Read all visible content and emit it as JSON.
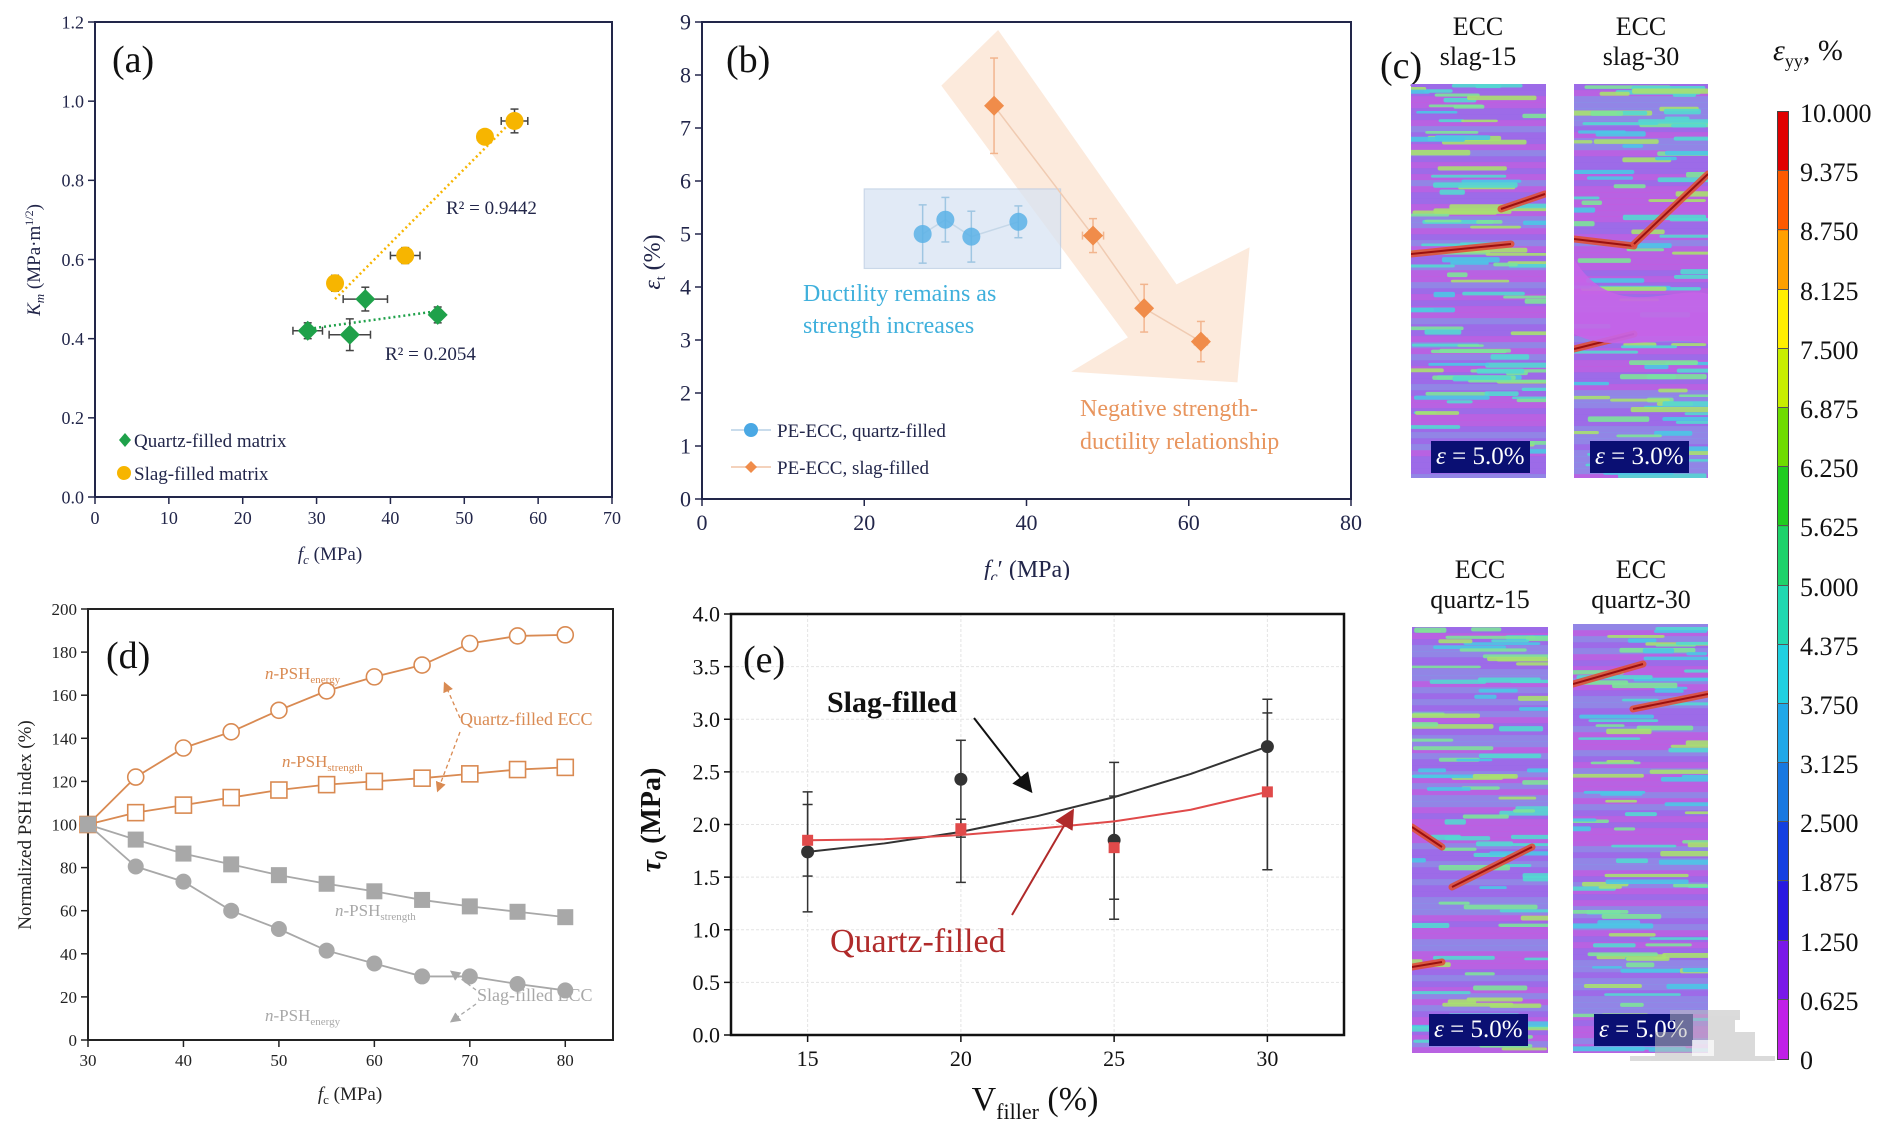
{
  "figure": {
    "panel_labels": {
      "a": "(a)",
      "b": "(b)",
      "c": "(c)",
      "d": "(d)",
      "e": "(e)"
    },
    "colors": {
      "quartz_a": "#1fa14a",
      "slag_a": "#f7b500",
      "quartz_b": "#5ab1e6",
      "slag_b": "#f08c4a",
      "quartz_d": "#d98a52",
      "slag_d": "#9a9a9a",
      "slag_e": "#333333",
      "quartz_e": "#e04a4a",
      "axis_dark": "#22264a"
    }
  },
  "chart_data": [
    {
      "id": "a",
      "type": "scatter",
      "title": "",
      "xlabel": "f_c (MPa)",
      "xlabel_main": "f",
      "xlabel_sub": "c",
      "xlabel_unit": " (MPa)",
      "ylabel": "K_m (MPa·m^1/2)",
      "ylabel_main": "K",
      "ylabel_sub": "m",
      "ylabel_unit": " (MPa·m",
      "ylabel_sup": "1/2",
      "ylabel_close": ")",
      "xlim": [
        0,
        70
      ],
      "ylim": [
        0,
        1.2
      ],
      "xticks": [
        "0",
        "10",
        "20",
        "30",
        "40",
        "50",
        "60",
        "70"
      ],
      "yticks": [
        "0.0",
        "0.2",
        "0.4",
        "0.6",
        "0.8",
        "1.0",
        "1.2"
      ],
      "grid": false,
      "legend_position": "bottom-left",
      "series": [
        {
          "name": "Quartz-filled matrix",
          "marker": "diamond",
          "points": [
            {
              "x": 28.8,
              "y": 0.42,
              "xerr": 2.0,
              "yerr": 0.02
            },
            {
              "x": 34.5,
              "y": 0.41,
              "xerr": 2.8,
              "yerr": 0.04
            },
            {
              "x": 36.6,
              "y": 0.5,
              "xerr": 3.0,
              "yerr": 0.03
            },
            {
              "x": 46.4,
              "y": 0.46,
              "xerr": 0.6,
              "yerr": 0.02
            }
          ],
          "trendline": {
            "x": [
              29,
              46.5
            ],
            "y": [
              0.425,
              0.47
            ],
            "r2_label": "R² = 0.2054"
          }
        },
        {
          "name": "Slag-filled matrix",
          "marker": "circle",
          "points": [
            {
              "x": 32.5,
              "y": 0.54,
              "xerr": 0.5,
              "yerr": 0.02
            },
            {
              "x": 42.0,
              "y": 0.61,
              "xerr": 2.0,
              "yerr": 0.02
            },
            {
              "x": 52.8,
              "y": 0.91,
              "xerr": 1.0,
              "yerr": 0.01
            },
            {
              "x": 56.8,
              "y": 0.95,
              "xerr": 1.8,
              "yerr": 0.03
            }
          ],
          "trendline": {
            "x": [
              32.5,
              57
            ],
            "y": [
              0.5,
              0.96
            ],
            "r2_label": "R² = 0.9442"
          }
        }
      ]
    },
    {
      "id": "b",
      "type": "scatter",
      "xlabel": "f_c' (MPa)",
      "xlabel_main": "f",
      "xlabel_sub": "c",
      "xlabel_unit": "′ (MPa)",
      "ylabel": "ε_t (%)",
      "ylabel_main": "ε",
      "ylabel_sub": "t",
      "ylabel_unit": " (%)",
      "xlim": [
        0,
        80
      ],
      "ylim": [
        0,
        9
      ],
      "xticks": [
        "0",
        "20",
        "40",
        "60",
        "80"
      ],
      "yticks": [
        "0",
        "1",
        "2",
        "3",
        "4",
        "5",
        "6",
        "7",
        "8",
        "9"
      ],
      "grid": false,
      "legend_position": "bottom-left",
      "series": [
        {
          "name": "PE-ECC, quartz-filled",
          "marker": "circle",
          "points": [
            {
              "x": 27.2,
              "y": 5.0,
              "yerr": 0.55
            },
            {
              "x": 30.0,
              "y": 5.27,
              "yerr": 0.42
            },
            {
              "x": 33.2,
              "y": 4.95,
              "yerr": 0.48
            },
            {
              "x": 39.0,
              "y": 5.23,
              "yerr": 0.3
            }
          ]
        },
        {
          "name": "PE-ECC, slag-filled",
          "marker": "diamond",
          "points": [
            {
              "x": 36.0,
              "y": 7.42,
              "yerr": 0.9,
              "xerr": 0
            },
            {
              "x": 48.2,
              "y": 4.97,
              "yerr": 0.32,
              "xerr": 1.3
            },
            {
              "x": 54.5,
              "y": 3.6,
              "yerr": 0.45,
              "xerr": 0
            },
            {
              "x": 61.5,
              "y": 2.97,
              "yerr": 0.38,
              "xerr": 0.8
            }
          ]
        }
      ],
      "annotations": {
        "ductility_line1": "Ductility remains as",
        "ductility_line2": "strength increases",
        "negative_line1": "Negative strength-",
        "negative_line2": "ductility relationship"
      }
    },
    {
      "id": "d",
      "type": "line",
      "xlabel": "f_c (MPa)",
      "xlabel_main": "f",
      "xlabel_sub": "c",
      "xlabel_unit": " (MPa)",
      "ylabel": "Normalized PSH index (%)",
      "xlim": [
        30,
        85
      ],
      "ylim": [
        0,
        200
      ],
      "x": [
        30,
        35,
        40,
        45,
        50,
        55,
        60,
        65,
        70,
        75,
        80
      ],
      "xticks": [
        "30",
        "40",
        "50",
        "60",
        "70",
        "80"
      ],
      "yticks": [
        "0",
        "20",
        "40",
        "60",
        "80",
        "100",
        "120",
        "140",
        "160",
        "180",
        "200"
      ],
      "grid": false,
      "series": [
        {
          "name": "Quartz-filled ECC n-PSH_energy",
          "group": "quartz",
          "marker": "open-circle",
          "values": [
            100,
            122,
            135.5,
            143,
            153,
            162,
            168.5,
            174,
            184,
            187.5,
            188
          ]
        },
        {
          "name": "Quartz-filled ECC n-PSH_strength",
          "group": "quartz",
          "marker": "open-square",
          "values": [
            100,
            105.5,
            109,
            112.5,
            116,
            118.5,
            120,
            121.5,
            123.5,
            125.5,
            126.5
          ]
        },
        {
          "name": "Slag-filled ECC n-PSH_strength",
          "group": "slag",
          "marker": "filled-square",
          "values": [
            100,
            93,
            86.5,
            81.5,
            76.5,
            72.5,
            69,
            65,
            62,
            59.5,
            57
          ]
        },
        {
          "name": "Slag-filled ECC n-PSH_energy",
          "group": "slag",
          "marker": "filled-circle",
          "values": [
            100,
            80.5,
            73.5,
            60,
            51.5,
            41.5,
            35.5,
            29.5,
            29.5,
            26,
            23
          ]
        }
      ],
      "annotations": {
        "n_prefix": "n",
        "psh": "-PSH",
        "energy_sub": "energy",
        "strength_sub": "strength",
        "quartz_group": "Quartz-filled ECC",
        "slag_group": "Slag-filled ECC"
      }
    },
    {
      "id": "e",
      "type": "scatter",
      "xlabel": "V_filler (%)",
      "xlabel_main": "V",
      "xlabel_sub": "filler",
      "xlabel_unit": " (%)",
      "ylabel": "τ_0 (MPa)",
      "ylabel_main": "τ",
      "ylabel_sub": "0",
      "ylabel_unit": " (MPa)",
      "xlim": [
        12.5,
        32.5
      ],
      "ylim": [
        0,
        4.0
      ],
      "xticks": [
        "15",
        "20",
        "25",
        "30"
      ],
      "xtick_values": [
        15,
        20,
        25,
        30
      ],
      "yticks": [
        "0.0",
        "0.5",
        "1.0",
        "1.5",
        "2.0",
        "2.5",
        "3.0",
        "3.5",
        "4.0"
      ],
      "grid": true,
      "series": [
        {
          "name": "Slag-filled",
          "marker": "circle",
          "points": [
            {
              "x": 15,
              "y": 1.74,
              "lo": 1.17,
              "hi": 2.31
            },
            {
              "x": 20,
              "y": 2.43,
              "lo": 1.45,
              "hi": 2.8
            },
            {
              "x": 25,
              "y": 1.85,
              "lo": 1.1,
              "hi": 2.59
            },
            {
              "x": 30,
              "y": 2.74,
              "lo": 1.57,
              "hi": 3.19
            }
          ],
          "fit": {
            "x": [
              15,
              17.5,
              20,
              22.5,
              25,
              27.5,
              30
            ],
            "y": [
              1.74,
              1.82,
              1.93,
              2.08,
              2.26,
              2.48,
              2.74
            ]
          }
        },
        {
          "name": "Quartz-filled",
          "marker": "square",
          "points": [
            {
              "x": 15,
              "y": 1.85,
              "lo": 1.51,
              "hi": 2.19
            },
            {
              "x": 20,
              "y": 1.96,
              "lo": 1.88,
              "hi": 2.05
            },
            {
              "x": 25,
              "y": 1.78,
              "lo": 1.29,
              "hi": 2.27
            },
            {
              "x": 30,
              "y": 2.31,
              "lo": 1.57,
              "hi": 3.06
            }
          ],
          "fit": {
            "x": [
              15,
              17.5,
              20,
              22.5,
              25,
              27.5,
              30
            ],
            "y": [
              1.85,
              1.86,
              1.9,
              1.96,
              2.03,
              2.14,
              2.31
            ]
          }
        }
      ],
      "annotations": {
        "slag_label": "Slag-filled",
        "quartz_label": "Quartz-filled"
      }
    }
  ],
  "panel_c": {
    "tiles": [
      {
        "title1": "ECC",
        "title2": "slag-15",
        "strain": "= 5.0%"
      },
      {
        "title1": "ECC",
        "title2": "slag-30",
        "strain": "= 3.0%"
      },
      {
        "title1": "ECC",
        "title2": "quartz-15",
        "strain": "= 5.0%"
      },
      {
        "title1": "ECC",
        "title2": "quartz-30",
        "strain": "= 5.0%"
      }
    ],
    "strain_symbol": "ε",
    "colorbar": {
      "title_main": "ε",
      "title_sub": "yy",
      "title_unit": ", %",
      "labels": [
        "10.000",
        "9.375",
        "8.750",
        "8.125",
        "7.500",
        "6.875",
        "6.250",
        "5.625",
        "5.000",
        "4.375",
        "3.750",
        "3.125",
        "2.500",
        "1.875",
        "1.250",
        "0.625",
        "0"
      ],
      "colors": [
        "#e00000",
        "#ff5a00",
        "#ffa000",
        "#ffee00",
        "#c8ee00",
        "#6fdc00",
        "#20cc20",
        "#1ed26a",
        "#20d8b0",
        "#20d0e0",
        "#20a8e8",
        "#1878e0",
        "#1440e0",
        "#2a18e0",
        "#7a18e8",
        "#c020e8"
      ]
    }
  }
}
